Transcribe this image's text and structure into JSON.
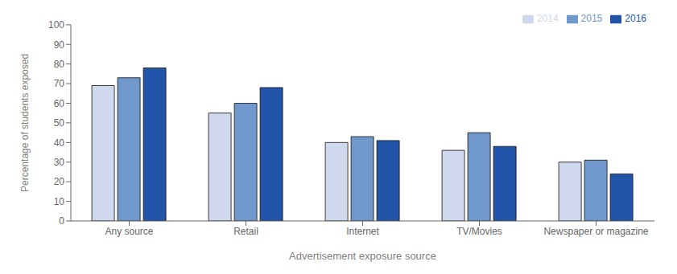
{
  "chart_data": {
    "type": "bar",
    "categories": [
      "Any source",
      "Retail",
      "Internet",
      "TV/Movies",
      "Newspaper or magazine"
    ],
    "series": [
      {
        "name": "2014",
        "color": "#d0d8ee",
        "values": [
          69,
          55,
          40,
          36,
          30
        ]
      },
      {
        "name": "2015",
        "color": "#7098cc",
        "values": [
          73,
          60,
          43,
          45,
          31
        ]
      },
      {
        "name": "2016",
        "color": "#2255aa",
        "values": [
          78,
          68,
          41,
          38,
          24
        ]
      }
    ],
    "xlabel": "Advertisement exposure source",
    "ylabel": "Percentage of students exposed",
    "ylim": [
      0,
      100
    ],
    "yticks": [
      0,
      10,
      20,
      30,
      40,
      50,
      60,
      70,
      80,
      90,
      100
    ],
    "grid": false,
    "legend": "upper right"
  }
}
